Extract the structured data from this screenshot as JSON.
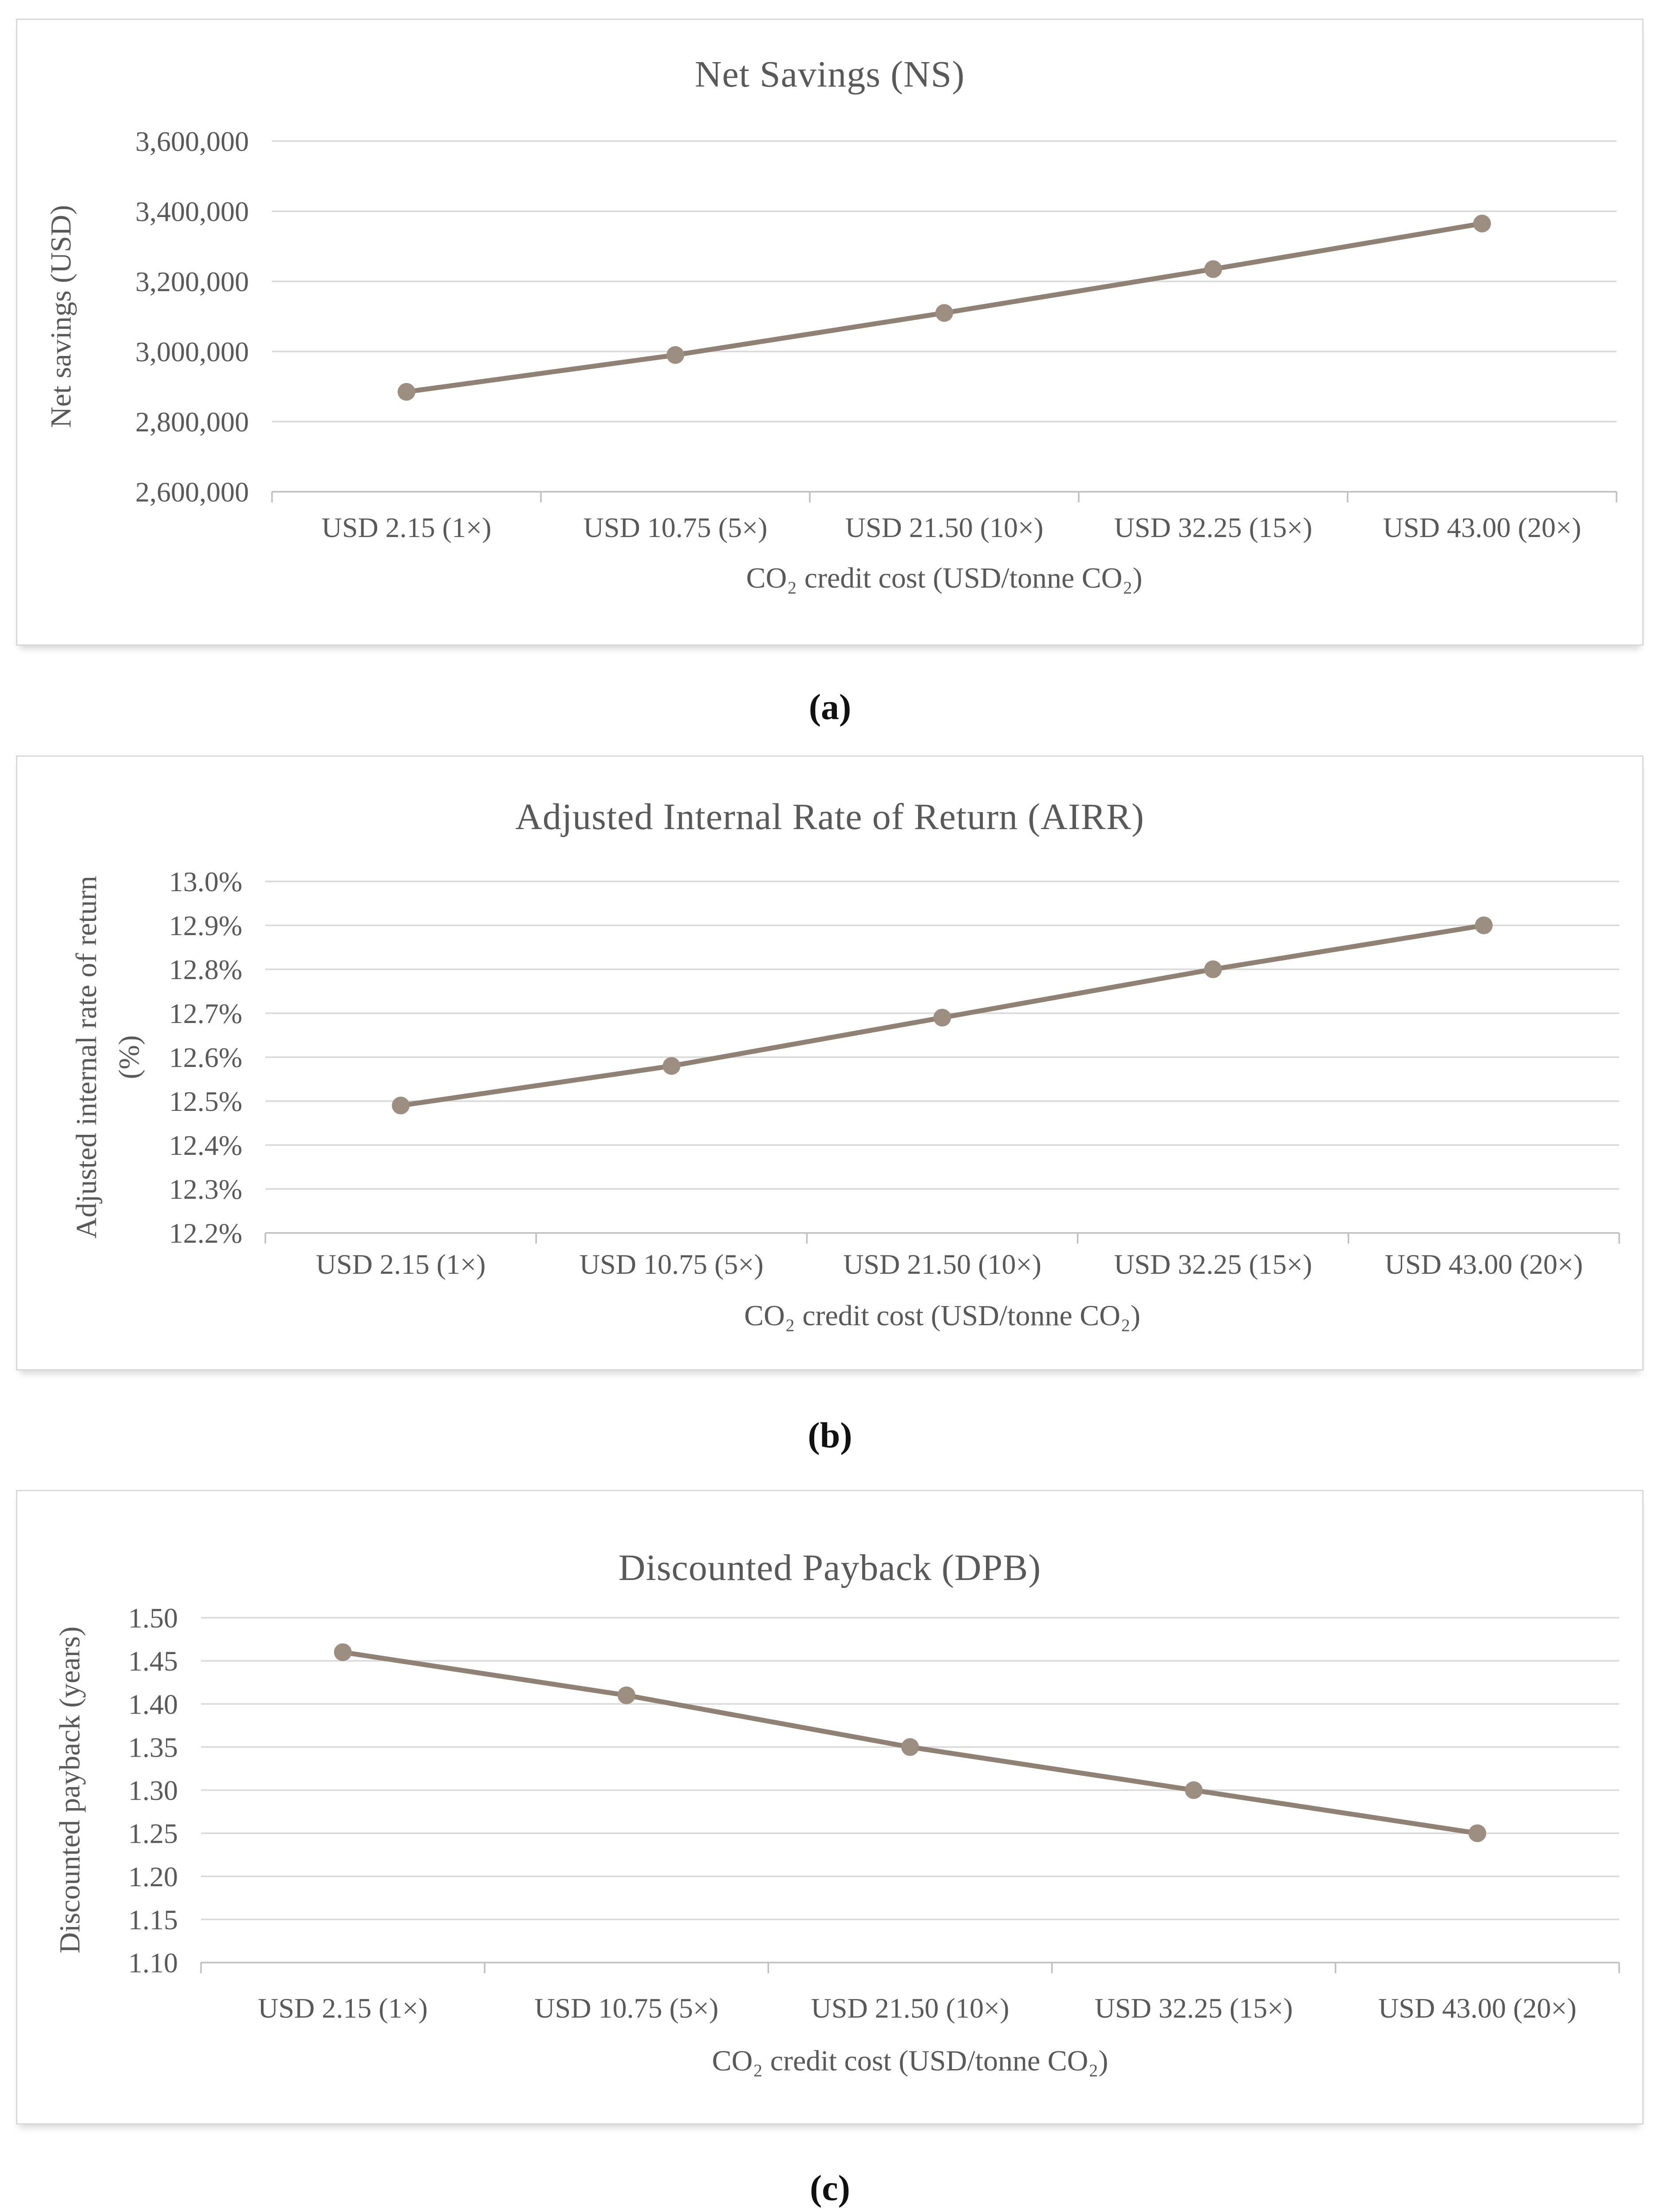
{
  "page": {
    "background": "#ffffff"
  },
  "captions": [
    "(a)",
    "(b)",
    "(c)"
  ],
  "colors": {
    "series_line": "#8f8173",
    "series_marker": "#9c8e81",
    "gridline": "#d9d9d9",
    "axis_line": "#bfbfbf",
    "label_text": "#595959"
  },
  "chart_data": [
    {
      "type": "line",
      "title": "Net Savings (NS)",
      "ylabel": "Net savings (USD)",
      "xlabel": "CO₂ credit cost (USD/tonne CO₂)",
      "categories": [
        "USD 2.15 (1×)",
        "USD 10.75 (5×)",
        "USD 21.50 (10×)",
        "USD 32.25 (15×)",
        "USD 43.00 (20×)"
      ],
      "values": [
        2885000,
        2990000,
        3110000,
        3235000,
        3365000
      ],
      "ylim": [
        2600000,
        3600000
      ],
      "ytick_step": 200000,
      "ytick_labels": [
        "2,600,000",
        "2,800,000",
        "3,000,000",
        "3,200,000",
        "3,400,000",
        "3,600,000"
      ],
      "grid": true,
      "legend": "none",
      "marker": "circle"
    },
    {
      "type": "line",
      "title": "Adjusted Internal Rate of Return (AIRR)",
      "ylabel": "Adjusted internal rate of return\n(%)",
      "xlabel": "CO₂ credit cost (USD/tonne CO₂)",
      "categories": [
        "USD 2.15 (1×)",
        "USD 10.75 (5×)",
        "USD 21.50 (10×)",
        "USD 32.25 (15×)",
        "USD 43.00 (20×)"
      ],
      "values": [
        12.49,
        12.58,
        12.69,
        12.8,
        12.9
      ],
      "ylim": [
        12.2,
        13.0
      ],
      "ytick_step": 0.1,
      "ytick_labels": [
        "12.2%",
        "12.3%",
        "12.4%",
        "12.5%",
        "12.6%",
        "12.7%",
        "12.8%",
        "12.9%",
        "13.0%"
      ],
      "grid": true,
      "legend": "none",
      "marker": "circle"
    },
    {
      "type": "line",
      "title": "Discounted Payback (DPB)",
      "ylabel": "Discounted payback (years)",
      "xlabel": "CO₂ credit cost (USD/tonne CO₂)",
      "categories": [
        "USD 2.15 (1×)",
        "USD 10.75 (5×)",
        "USD 21.50 (10×)",
        "USD 32.25 (15×)",
        "USD 43.00 (20×)"
      ],
      "values": [
        1.46,
        1.41,
        1.35,
        1.3,
        1.25
      ],
      "ylim": [
        1.1,
        1.5
      ],
      "ytick_step": 0.05,
      "ytick_labels": [
        "1.10",
        "1.15",
        "1.20",
        "1.25",
        "1.30",
        "1.35",
        "1.40",
        "1.45",
        "1.50"
      ],
      "grid": true,
      "legend": "none",
      "marker": "circle"
    }
  ]
}
